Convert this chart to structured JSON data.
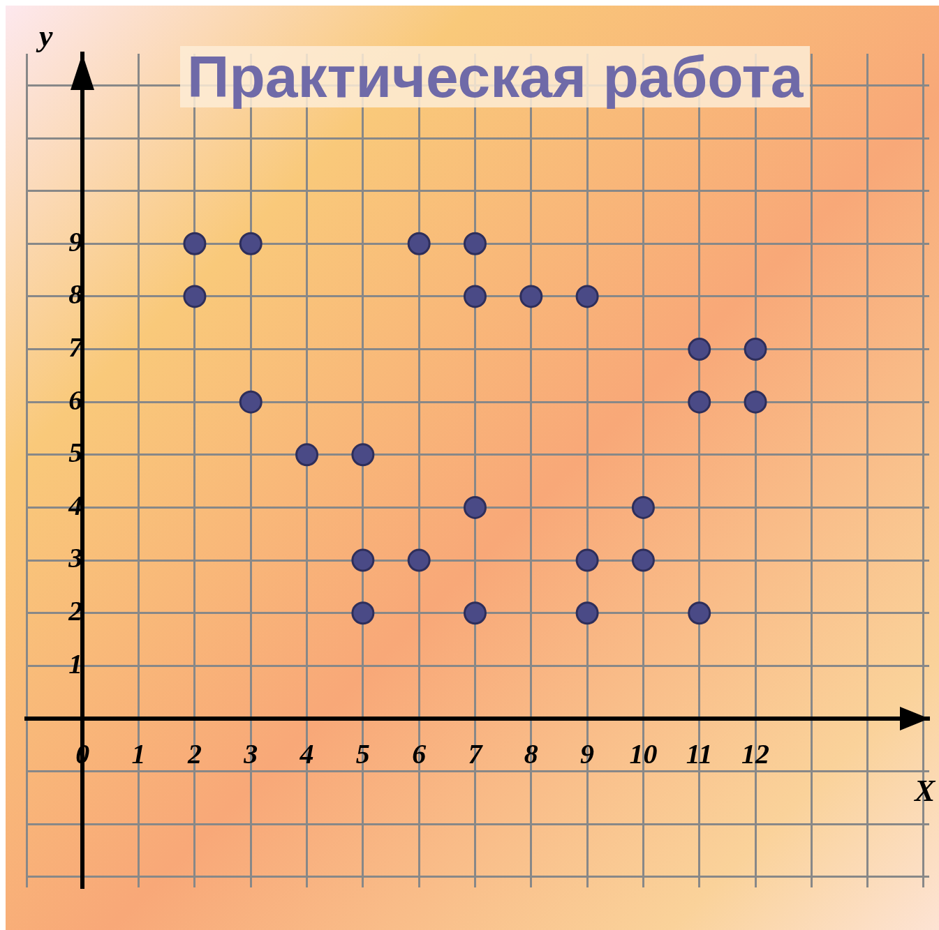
{
  "chart_data": {
    "type": "scatter",
    "title": "Практическая работа",
    "xlabel": "X",
    "ylabel": "y",
    "x": [
      2,
      3,
      6,
      7,
      2,
      7,
      8,
      9,
      11,
      12,
      11,
      12,
      3,
      4,
      5,
      7,
      10,
      5,
      6,
      9,
      10,
      5,
      7,
      9,
      11
    ],
    "values": [
      9,
      9,
      9,
      9,
      8,
      8,
      8,
      8,
      7,
      7,
      6,
      6,
      6,
      5,
      5,
      4,
      4,
      3,
      3,
      3,
      3,
      2,
      2,
      2,
      2
    ],
    "color": "#4a4a86",
    "marker": "circle",
    "grid": true,
    "xlim": [
      -1,
      15.1
    ],
    "ylim": [
      -3.2,
      12.6
    ],
    "xticks": [
      {
        "value": -1,
        "label": null
      },
      {
        "value": 0,
        "label": "0"
      },
      1,
      2,
      3,
      4,
      5,
      6,
      7,
      8,
      9,
      10,
      11,
      12,
      {
        "value": 13,
        "label": null
      },
      {
        "value": 14,
        "label": null
      },
      {
        "value": 15,
        "label": null
      }
    ],
    "yticks": [
      {
        "value": -3,
        "label": null
      },
      {
        "value": -2,
        "label": null
      },
      {
        "value": -1,
        "label": null
      },
      {
        "value": 0,
        "label": null
      },
      1,
      2,
      3,
      4,
      5,
      6,
      7,
      8,
      9,
      {
        "value": 10,
        "label": null
      },
      {
        "value": 11,
        "label": null
      },
      {
        "value": 12,
        "label": null
      }
    ]
  }
}
